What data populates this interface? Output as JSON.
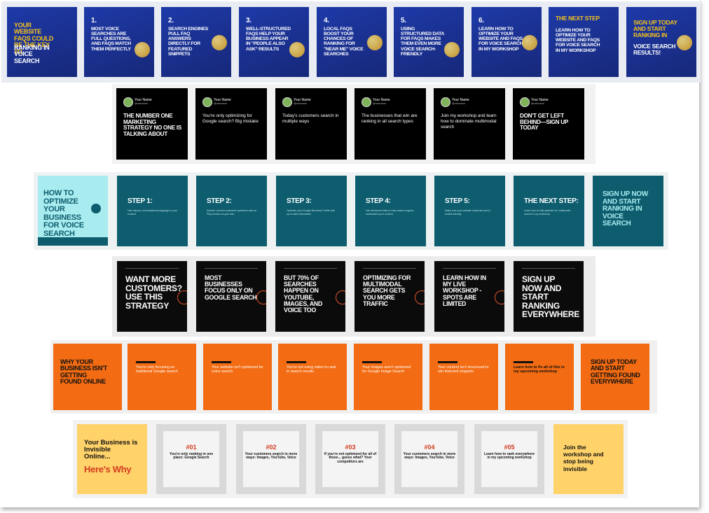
{
  "row1": [
    {
      "num": "",
      "text": "Your website FAQs could be the key to",
      "accent": "ranking in voice search"
    },
    {
      "num": "1.",
      "text": "Most voice searches are full questions, and FAQs match them perfectly",
      "accent": ""
    },
    {
      "num": "2.",
      "text": "Search engines pull FAQ answers directly for featured snippets",
      "accent": ""
    },
    {
      "num": "3.",
      "text": "Well-structured FAQs help your business appear in \"People Also Ask\" results",
      "accent": ""
    },
    {
      "num": "4.",
      "text": "Local FAQs boost your chances of ranking for \"near me\" voice searches",
      "accent": ""
    },
    {
      "num": "5.",
      "text": "Using structured data for FAQs makes them even more voice search-friendly",
      "accent": ""
    },
    {
      "num": "6.",
      "text": "Learn how to optimize your website and FAQs for voice search in my workshop",
      "accent": ""
    },
    {
      "num": "",
      "text": "Learn how to optimize your website and FAQs for voice search in my workshop",
      "accent": "The next step"
    },
    {
      "num": "",
      "text": "Sign up today and start ranking in",
      "accent": "voice search results!"
    }
  ],
  "row2": {
    "name": "Your Name",
    "handle": "@username",
    "cards": [
      "THE NUMBER ONE MARKETING STRATEGY NO ONE IS TALKING ABOUT",
      "You're only optimizing for Google search? Big mistake",
      "Today's customers search in multiple ways",
      "The businesses that win are ranking in all search types",
      "Join my workshop and learn how to dominate multimodal search",
      "DON'T GET LEFT BEHIND—SIGN UP TODAY"
    ]
  },
  "row3": {
    "intro": "How to optimize your business for voice search",
    "steps": [
      {
        "title": "Step 1:",
        "text": "Use natural, conversational language in your content"
      },
      {
        "title": "Step 2:",
        "text": "Answer common customer questions with an FAQ section on your site"
      },
      {
        "title": "Step 3:",
        "text": "Optimize your Google Business Profile with up-to-date information"
      },
      {
        "title": "Step 4:",
        "text": "Use structured data to help search engines understand your content"
      },
      {
        "title": "Step 5:",
        "text": "Make sure your website loads fast and is mobile-friendly"
      },
      {
        "title": "The next step:",
        "text": "Learn how to fully optimize for multimodal search in my workshop"
      }
    ],
    "outro": "Sign up now and start ranking in voice search"
  },
  "row4": [
    "Want more customers? Use this strategy",
    "Most businesses focus only on Google search",
    "But 70% of searches happen on YouTube, images, and voice too",
    "Optimizing for multimodal search gets you more traffic",
    "Learn how in my live workshop - spots are limited",
    "Sign up now and start ranking everywhere"
  ],
  "row5": [
    "WHY YOUR BUSINESS ISN'T GETTING FOUND ONLINE",
    "You're only focusing on traditional Google search",
    "Your website isn't optimized for voice search",
    "You're not using video to rank in search results",
    "Your images aren't optimized for Google Image Search",
    "Your content isn't structured to win featured snippets",
    "Learn how to fix all of this in my upcoming workshop",
    "SIGN UP TODAY AND START GETTING FOUND EVERYWHERE"
  ],
  "row6": {
    "intro_line1": "Your Business is Invisible Online...",
    "intro_line2": "Here's Why",
    "items": [
      {
        "num": "#01",
        "text": "You're only ranking in one place: Google Search"
      },
      {
        "num": "#02",
        "text": "Your customers search in more ways: Images, YouTube, Voice"
      },
      {
        "num": "#03",
        "text": "If you're not optimized for all of these... guess what? Your competitors are"
      },
      {
        "num": "#04",
        "text": "Your customers search in more ways: Images, YouTube, Voice"
      },
      {
        "num": "#05",
        "text": "Learn how to rank everywhere in my upcoming workshop"
      }
    ],
    "outro": "Join the workshop and stop being invisible"
  },
  "colors": {
    "blue": "#1d3aa8",
    "gold": "#f5c21b",
    "teal": "#0d5d6e",
    "teal_light": "#a9ecef",
    "orange": "#f36b12",
    "yellow": "#ffd26a",
    "red": "#d23a1e"
  }
}
